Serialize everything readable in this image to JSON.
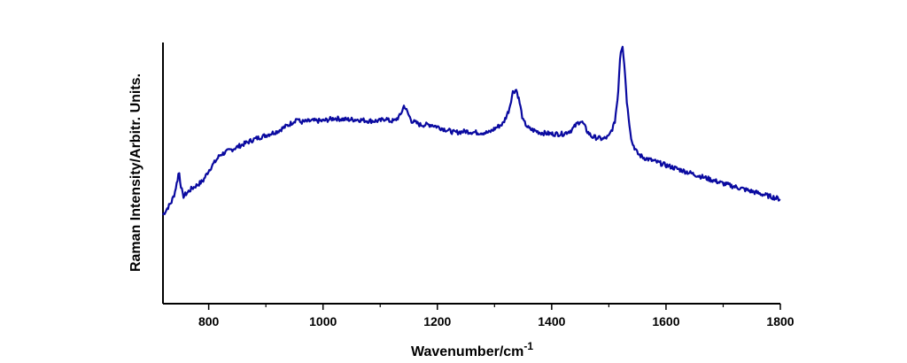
{
  "chart_data": {
    "type": "line",
    "title": "",
    "xlabel": "Wavenumber/cm",
    "xlabel_superscript": "-1",
    "ylabel": "Raman Intensity/Arbitr. Units.",
    "xlim": [
      720,
      1800
    ],
    "ylim": [
      0,
      1
    ],
    "x_ticks": [
      800,
      1000,
      1200,
      1400,
      1600,
      1800
    ],
    "x_tick_labels": [
      "800",
      "1000",
      "1200",
      "1400",
      "1600",
      "1800"
    ],
    "y_ticks_shown": false,
    "grid": false,
    "line_color": "#0a0aa0",
    "series": [
      {
        "x": [
          720,
          735,
          740,
          745,
          748,
          750,
          755,
          760,
          770,
          790,
          800,
          820,
          840,
          860,
          880,
          900,
          920,
          940,
          950,
          955,
          960,
          980,
          1000,
          1020,
          1040,
          1060,
          1080,
          1100,
          1110,
          1115,
          1125,
          1135,
          1142,
          1148,
          1155,
          1170,
          1190,
          1210,
          1230,
          1250,
          1270,
          1290,
          1300,
          1315,
          1325,
          1332,
          1338,
          1343,
          1350,
          1360,
          1380,
          1400,
          1420,
          1435,
          1445,
          1450,
          1455,
          1462,
          1470,
          1490,
          1500,
          1510,
          1516,
          1520,
          1524,
          1527,
          1532,
          1540,
          1550,
          1560,
          1580,
          1600,
          1650,
          1700,
          1750,
          1800
        ],
        "y": [
          0.34,
          0.39,
          0.42,
          0.47,
          0.51,
          0.47,
          0.41,
          0.42,
          0.44,
          0.47,
          0.51,
          0.57,
          0.59,
          0.61,
          0.63,
          0.645,
          0.66,
          0.685,
          0.7,
          0.71,
          0.695,
          0.7,
          0.7,
          0.71,
          0.705,
          0.705,
          0.7,
          0.7,
          0.71,
          0.7,
          0.7,
          0.72,
          0.76,
          0.73,
          0.7,
          0.685,
          0.685,
          0.67,
          0.655,
          0.66,
          0.655,
          0.655,
          0.67,
          0.69,
          0.74,
          0.81,
          0.82,
          0.78,
          0.7,
          0.67,
          0.655,
          0.65,
          0.65,
          0.665,
          0.69,
          0.7,
          0.69,
          0.66,
          0.64,
          0.63,
          0.64,
          0.69,
          0.8,
          0.96,
          0.99,
          0.92,
          0.76,
          0.62,
          0.575,
          0.56,
          0.545,
          0.53,
          0.495,
          0.46,
          0.43,
          0.4
        ]
      }
    ]
  }
}
